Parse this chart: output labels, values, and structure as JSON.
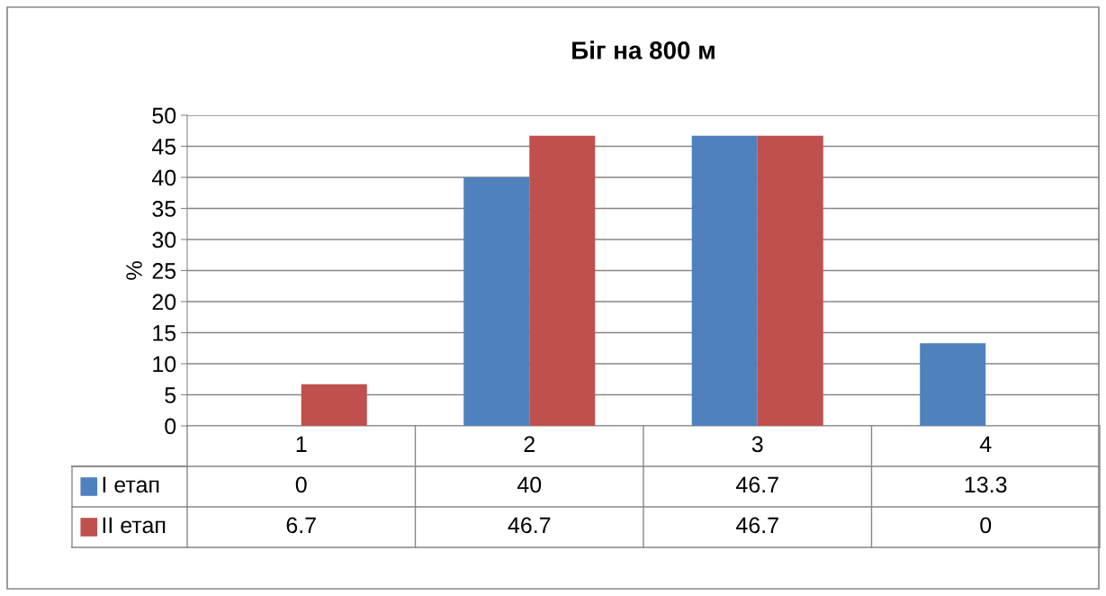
{
  "chart_data": {
    "type": "bar",
    "title": "Біг на 800 м",
    "ylabel": "%",
    "categories": [
      "1",
      "2",
      "3",
      "4"
    ],
    "series": [
      {
        "name": "I етап",
        "color": "#4f81bd",
        "values": [
          0,
          40,
          46.7,
          13.3
        ]
      },
      {
        "name": "II етап",
        "color": "#c0504d",
        "values": [
          6.7,
          46.7,
          46.7,
          0
        ]
      }
    ],
    "ylim": [
      0,
      50
    ],
    "yticks": [
      0,
      5,
      10,
      15,
      20,
      25,
      30,
      35,
      40,
      45,
      50
    ],
    "grid": "y",
    "legend": "bottom",
    "data_labels": true
  }
}
